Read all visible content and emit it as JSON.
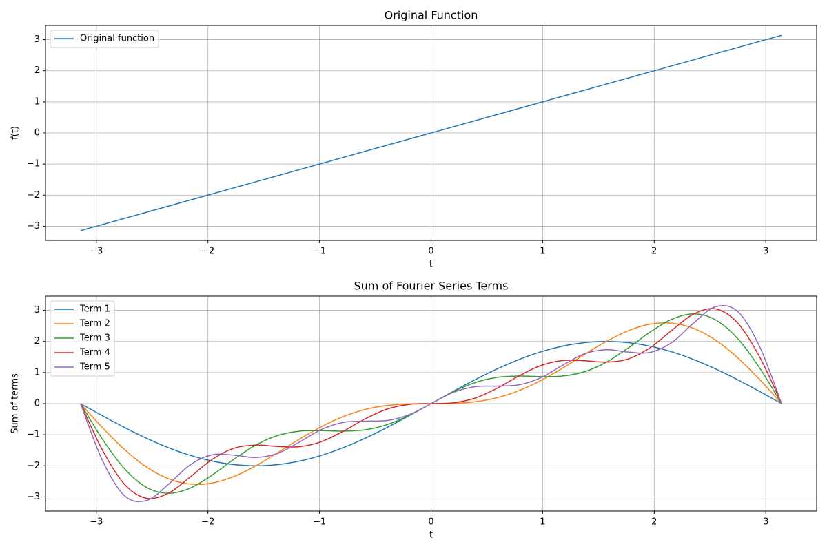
{
  "chart_data": [
    {
      "type": "line",
      "title": "Original Function",
      "xlabel": "t",
      "ylabel": "f(t)",
      "x": [
        -3.1416,
        3.1416
      ],
      "series": [
        {
          "name": "Original function",
          "color": "#1f77b4",
          "values": [
            -3.1416,
            3.1416
          ]
        }
      ],
      "xlim": [
        -3.4558,
        3.4558
      ],
      "ylim": [
        -3.4558,
        3.4558
      ],
      "xticks": [
        {
          "value": -3,
          "label": "−3"
        },
        {
          "value": -2,
          "label": "−2"
        },
        {
          "value": -1,
          "label": "−1"
        },
        0,
        1,
        2,
        3
      ],
      "yticks": [
        {
          "value": -3,
          "label": "−3"
        },
        {
          "value": -2,
          "label": "−2"
        },
        {
          "value": -1,
          "label": "−1"
        },
        0,
        1,
        2,
        3
      ],
      "grid": true,
      "legend": "upper-left"
    },
    {
      "type": "line",
      "title": "Sum of Fourier Series Terms",
      "xlabel": "t",
      "ylabel": "Sum of terms",
      "x": [
        -3.1416,
        -2.9452,
        -2.7489,
        -2.5525,
        -2.3562,
        -2.1598,
        -1.9635,
        -1.7671,
        -1.5708,
        -1.3744,
        -1.1781,
        -0.9817,
        -0.7854,
        -0.589,
        -0.3927,
        -0.1963,
        0,
        0.1963,
        0.3927,
        0.589,
        0.7854,
        0.9817,
        1.1781,
        1.3744,
        1.5708,
        1.7671,
        1.9635,
        2.1598,
        2.3562,
        2.5525,
        2.7489,
        2.9452,
        3.1416
      ],
      "series": [
        {
          "name": "Term 1",
          "color": "#1f77b4",
          "values": [
            0,
            -0.3902,
            -0.7654,
            -1.1112,
            -1.4142,
            -1.663,
            -1.8478,
            -1.9616,
            -2,
            -1.9616,
            -1.8478,
            -1.663,
            -1.4142,
            -1.1112,
            -0.7654,
            -0.3902,
            0,
            0.3902,
            0.7654,
            1.1112,
            1.4142,
            1.663,
            1.8478,
            1.9616,
            2,
            1.9616,
            1.8478,
            1.663,
            1.4142,
            1.1112,
            0.7654,
            0.3902,
            0
          ]
        },
        {
          "name": "Term 2",
          "color": "#ff7f0e",
          "values": [
            0,
            -0.7729,
            -1.4725,
            -2.0351,
            -2.4142,
            -2.5869,
            -2.5549,
            -2.3443,
            -2,
            -1.5789,
            -1.1407,
            -0.7391,
            -0.4142,
            -0.1873,
            -0.0583,
            -0.0075,
            0,
            0.0075,
            0.0583,
            0.1873,
            0.4142,
            0.7391,
            1.1407,
            1.5789,
            2,
            2.3443,
            2.5549,
            2.5869,
            2.4142,
            2.0351,
            1.4725,
            0.7729,
            0
          ]
        },
        {
          "name": "Term 3",
          "color": "#2ca02c",
          "values": [
            0,
            -1.1433,
            -2.0884,
            -2.689,
            -2.8856,
            -2.717,
            -2.2998,
            -1.79,
            -1.3333,
            -1.0246,
            -0.8856,
            -0.8692,
            -0.8856,
            -0.8412,
            -0.6742,
            -0.3779,
            0,
            0.3779,
            0.6742,
            0.8412,
            0.8856,
            0.8692,
            0.8856,
            1.0246,
            1.3333,
            1.79,
            2.2998,
            2.717,
            2.8856,
            2.689,
            2.0884,
            1.1433,
            0
          ]
        },
        {
          "name": "Term 4",
          "color": "#d62728",
          "values": [
            0,
            -1.4969,
            -2.5884,
            -3.0426,
            -2.8856,
            -2.3634,
            -1.7998,
            -1.4364,
            -1.3333,
            -1.3782,
            -1.3856,
            -1.2228,
            -0.8856,
            -0.4876,
            -0.1742,
            -0.0243,
            0,
            0.0243,
            0.1742,
            0.4876,
            0.8856,
            1.2228,
            1.3856,
            1.3782,
            1.3333,
            1.4364,
            1.7998,
            2.3634,
            2.8856,
            3.0426,
            2.5884,
            1.4969,
            0
          ]
        },
        {
          "name": "Term 5",
          "color": "#9467bd",
          "values": [
            0,
            -1.8295,
            -2.958,
            -3.1206,
            -2.6028,
            -1.9711,
            -1.6467,
            -1.6586,
            -1.7333,
            -1.6004,
            -1.2325,
            -0.8305,
            -0.6028,
            -0.5656,
            -0.5438,
            -0.3569,
            0,
            0.3569,
            0.5438,
            0.5656,
            0.6028,
            0.8305,
            1.2325,
            1.6004,
            1.7333,
            1.6586,
            1.6467,
            1.9711,
            2.6028,
            3.1206,
            2.958,
            1.8295,
            0
          ]
        }
      ],
      "xlim": [
        -3.4558,
        3.4558
      ],
      "ylim": [
        -3.4558,
        3.4558
      ],
      "xticks": [
        {
          "value": -3,
          "label": "−3"
        },
        {
          "value": -2,
          "label": "−2"
        },
        {
          "value": -1,
          "label": "−1"
        },
        0,
        1,
        2,
        3
      ],
      "yticks": [
        {
          "value": -3,
          "label": "−3"
        },
        {
          "value": -2,
          "label": "−2"
        },
        {
          "value": -1,
          "label": "−1"
        },
        0,
        1,
        2,
        3
      ],
      "grid": true,
      "legend": "upper-left"
    }
  ]
}
